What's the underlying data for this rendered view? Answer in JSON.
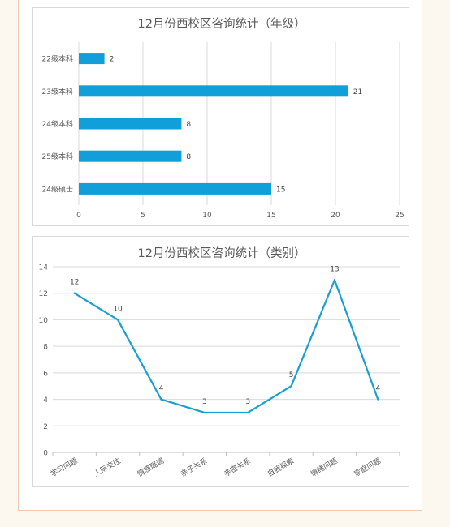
{
  "chart_data": [
    {
      "type": "bar",
      "orientation": "horizontal",
      "title": "12月份西校区咨询统计（年级）",
      "categories": [
        "22级本科",
        "23级本科",
        "24级本科",
        "25级本科",
        "24级硕士"
      ],
      "values": [
        2,
        21,
        8,
        8,
        15
      ],
      "x_ticks": [
        "0",
        "5",
        "10",
        "15",
        "20",
        "25"
      ],
      "xlim": [
        0,
        25
      ],
      "grid": "vertical",
      "bar_color": "#109fd9"
    },
    {
      "type": "line",
      "title": "12月份西校区咨询统计（类别）",
      "categories": [
        "学习问题",
        "人际交往",
        "情感璐调",
        "亲子关系",
        "亲密关系",
        "自我探索",
        "情绪问题",
        "家庭问题"
      ],
      "values": [
        12,
        10,
        4,
        3,
        3,
        5,
        13,
        4
      ],
      "y_ticks": [
        "0",
        "2",
        "4",
        "6",
        "8",
        "10",
        "12",
        "14"
      ],
      "ylim": [
        0,
        14
      ],
      "grid": "horizontal",
      "line_color": "#1a9fd3"
    }
  ]
}
